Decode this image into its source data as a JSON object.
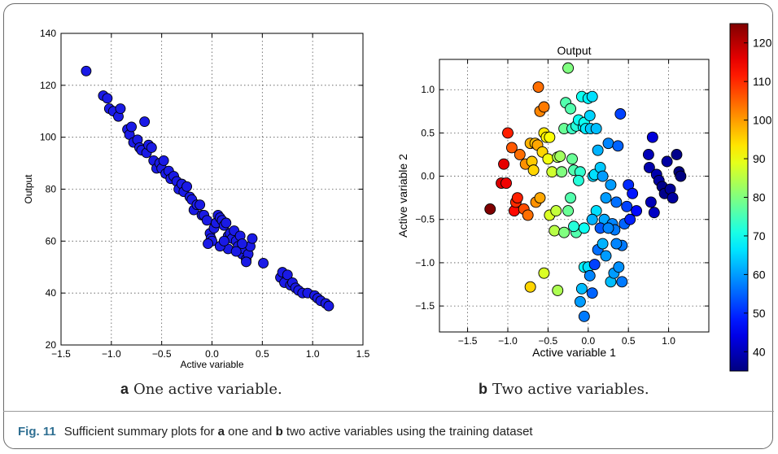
{
  "caption": {
    "fig_label": "Fig. 11",
    "text_1": "Sufficient summary plots for ",
    "bold_a": "a",
    "text_2": " one and ",
    "bold_b": "b",
    "text_3": " two active variables using the training dataset"
  },
  "subcaptions": {
    "a": {
      "letter": "a",
      "text": "One active variable."
    },
    "b": {
      "letter": "b",
      "text": "Two active variables."
    }
  },
  "chart_data": [
    {
      "type": "scatter",
      "panel": "a",
      "title": "",
      "xlabel": "Active variable",
      "ylabel": "Output",
      "xlim": [
        -1.5,
        1.5
      ],
      "ylim": [
        20,
        140
      ],
      "xticks": [
        "−1.5",
        "−1.0",
        "−0.5",
        "0.0",
        "0.5",
        "1.0",
        "1.5"
      ],
      "xtick_values": [
        -1.5,
        -1.0,
        -0.5,
        0.0,
        0.5,
        1.0,
        1.5
      ],
      "yticks": [
        "20",
        "40",
        "60",
        "80",
        "100",
        "120",
        "140"
      ],
      "ytick_values": [
        20,
        40,
        60,
        80,
        100,
        120,
        140
      ],
      "grid": true,
      "marker_color": "#1a1ae6",
      "points": [
        [
          -1.25,
          125.5
        ],
        [
          -1.08,
          116
        ],
        [
          -1.04,
          115
        ],
        [
          -1.02,
          111
        ],
        [
          -0.98,
          110
        ],
        [
          -0.93,
          108
        ],
        [
          -0.91,
          111
        ],
        [
          -0.84,
          103
        ],
        [
          -0.82,
          101
        ],
        [
          -0.8,
          104
        ],
        [
          -0.78,
          98
        ],
        [
          -0.74,
          99
        ],
        [
          -0.72,
          96
        ],
        [
          -0.7,
          95
        ],
        [
          -0.67,
          106
        ],
        [
          -0.65,
          94
        ],
        [
          -0.63,
          97
        ],
        [
          -0.6,
          96
        ],
        [
          -0.58,
          91
        ],
        [
          -0.55,
          88
        ],
        [
          -0.52,
          90
        ],
        [
          -0.5,
          88
        ],
        [
          -0.48,
          91
        ],
        [
          -0.46,
          86
        ],
        [
          -0.43,
          87
        ],
        [
          -0.41,
          84
        ],
        [
          -0.38,
          85
        ],
        [
          -0.35,
          83
        ],
        [
          -0.33,
          80
        ],
        [
          -0.3,
          82
        ],
        [
          -0.28,
          79
        ],
        [
          -0.25,
          81
        ],
        [
          -0.22,
          77
        ],
        [
          -0.2,
          76
        ],
        [
          -0.18,
          72
        ],
        [
          -0.15,
          74
        ],
        [
          -0.12,
          74
        ],
        [
          -0.1,
          70
        ],
        [
          -0.08,
          70
        ],
        [
          -0.05,
          68
        ],
        [
          -0.02,
          63
        ],
        [
          -0.01,
          61
        ],
        [
          0.0,
          60
        ],
        [
          0.02,
          65
        ],
        [
          0.04,
          67
        ],
        [
          0.06,
          70
        ],
        [
          0.08,
          69
        ],
        [
          0.1,
          68
        ],
        [
          0.12,
          66
        ],
        [
          0.14,
          67
        ],
        [
          0.16,
          62
        ],
        [
          0.18,
          63
        ],
        [
          0.2,
          61
        ],
        [
          0.22,
          64
        ],
        [
          0.24,
          60
        ],
        [
          0.26,
          58
        ],
        [
          0.28,
          62
        ],
        [
          0.3,
          55
        ],
        [
          0.32,
          57
        ],
        [
          0.34,
          53
        ],
        [
          0.36,
          55
        ],
        [
          0.38,
          58
        ],
        [
          0.4,
          61
        ],
        [
          0.16,
          57
        ],
        [
          0.24,
          56
        ],
        [
          0.3,
          59
        ],
        [
          0.34,
          52
        ],
        [
          0.08,
          58
        ],
        [
          0.12,
          60
        ],
        [
          -0.04,
          59
        ],
        [
          0.51,
          51.5
        ],
        [
          0.68,
          46
        ],
        [
          0.7,
          48
        ],
        [
          0.72,
          44
        ],
        [
          0.75,
          47
        ],
        [
          0.78,
          43
        ],
        [
          0.8,
          44
        ],
        [
          0.83,
          42
        ],
        [
          0.86,
          41
        ],
        [
          0.9,
          40
        ],
        [
          0.95,
          40
        ],
        [
          1.02,
          39
        ],
        [
          1.05,
          38
        ],
        [
          1.08,
          37
        ],
        [
          1.13,
          36
        ],
        [
          1.16,
          35
        ]
      ]
    },
    {
      "type": "scatter",
      "panel": "b",
      "title": "Output",
      "xlabel": "Active variable 1",
      "ylabel": "Active variable 2",
      "xlim": [
        -1.85,
        1.5
      ],
      "ylim": [
        -1.8,
        1.35
      ],
      "xticks": [
        "−1.5",
        "−1.0",
        "−0.5",
        "0.0",
        "0.5",
        "1.0"
      ],
      "xtick_values": [
        -1.5,
        -1.0,
        -0.5,
        0.0,
        0.5,
        1.0
      ],
      "yticks": [
        "−1.5",
        "−1.0",
        "−0.5",
        "0.0",
        "0.5",
        "1.0"
      ],
      "ytick_values": [
        -1.5,
        -1.0,
        -0.5,
        0.0,
        0.5,
        1.0
      ],
      "grid": true,
      "colormap": "jet",
      "colorbar": {
        "min": 35,
        "max": 125,
        "ticks": [
          "40",
          "50",
          "60",
          "70",
          "80",
          "90",
          "100",
          "110",
          "120"
        ],
        "tick_values": [
          40,
          50,
          60,
          70,
          80,
          90,
          100,
          110,
          120
        ]
      },
      "points": [
        [
          -1.22,
          -0.38,
          125
        ],
        [
          -1.08,
          -0.08,
          117
        ],
        [
          -1.02,
          -0.08,
          115
        ],
        [
          -1.05,
          0.14,
          116
        ],
        [
          -1.0,
          0.5,
          111
        ],
        [
          -0.95,
          0.33,
          106
        ],
        [
          -0.92,
          -0.4,
          113
        ],
        [
          -0.9,
          -0.3,
          110
        ],
        [
          -0.88,
          -0.25,
          111
        ],
        [
          -0.85,
          0.25,
          104
        ],
        [
          -0.8,
          -0.38,
          107
        ],
        [
          -0.78,
          0.14,
          101
        ],
        [
          -0.75,
          -0.45,
          104
        ],
        [
          -0.72,
          0.38,
          98
        ],
        [
          -0.7,
          0.17,
          96
        ],
        [
          -0.68,
          0.07,
          95
        ],
        [
          -0.66,
          0.38,
          97
        ],
        [
          -0.65,
          -0.3,
          101
        ],
        [
          -0.63,
          0.36,
          99
        ],
        [
          -0.6,
          0.75,
          102
        ],
        [
          -0.55,
          0.8,
          103
        ],
        [
          -0.62,
          1.03,
          104
        ],
        [
          -0.6,
          -0.25,
          99
        ],
        [
          -0.57,
          0.28,
          95
        ],
        [
          -0.55,
          0.5,
          93
        ],
        [
          -0.52,
          0.45,
          92
        ],
        [
          -0.5,
          0.2,
          90
        ],
        [
          -0.48,
          0.45,
          91
        ],
        [
          -0.48,
          -0.45,
          88
        ],
        [
          -0.45,
          0.05,
          87
        ],
        [
          -0.42,
          -0.63,
          85
        ],
        [
          -0.4,
          -0.4,
          86
        ],
        [
          -0.38,
          0.22,
          84
        ],
        [
          -0.35,
          0.23,
          83
        ],
        [
          -0.33,
          0.05,
          80
        ],
        [
          -0.3,
          0.55,
          78
        ],
        [
          -0.28,
          0.85,
          76
        ],
        [
          -0.25,
          1.25,
          80
        ],
        [
          -0.22,
          0.78,
          76
        ],
        [
          -0.2,
          0.2,
          78
        ],
        [
          -0.2,
          0.55,
          74
        ],
        [
          -0.18,
          0.07,
          76
        ],
        [
          -0.15,
          0.58,
          72
        ],
        [
          -0.12,
          0.65,
          70
        ],
        [
          -0.1,
          0.05,
          73
        ],
        [
          -0.08,
          0.92,
          70
        ],
        [
          -0.06,
          0.57,
          68
        ],
        [
          -0.05,
          0.62,
          70
        ],
        [
          -0.03,
          0.55,
          67
        ],
        [
          0.0,
          0.9,
          68
        ],
        [
          0.02,
          0.7,
          65
        ],
        [
          0.03,
          0.55,
          64
        ],
        [
          0.05,
          0.92,
          66
        ],
        [
          0.06,
          0.0,
          65
        ],
        [
          0.08,
          0.02,
          66
        ],
        [
          0.1,
          0.55,
          63
        ],
        [
          0.12,
          0.3,
          62
        ],
        [
          0.15,
          0.1,
          64
        ],
        [
          0.18,
          0.0,
          60
        ],
        [
          0.2,
          -0.5,
          61
        ],
        [
          0.22,
          -0.25,
          60
        ],
        [
          0.25,
          0.38,
          58
        ],
        [
          0.28,
          -0.1,
          60
        ],
        [
          0.3,
          -0.55,
          58
        ],
        [
          0.33,
          -0.62,
          57
        ],
        [
          0.35,
          -0.3,
          56
        ],
        [
          0.37,
          0.35,
          55
        ],
        [
          0.4,
          0.72,
          52
        ],
        [
          0.42,
          -0.8,
          57
        ],
        [
          0.45,
          -0.55,
          55
        ],
        [
          0.48,
          -0.35,
          52
        ],
        [
          0.5,
          -0.1,
          50
        ],
        [
          0.52,
          -0.5,
          49
        ],
        [
          0.55,
          -0.2,
          48
        ],
        [
          0.6,
          -0.4,
          47
        ],
        [
          0.75,
          0.25,
          40
        ],
        [
          0.76,
          0.1,
          39
        ],
        [
          0.78,
          -0.3,
          40
        ],
        [
          0.8,
          0.45,
          43
        ],
        [
          0.82,
          -0.42,
          41
        ],
        [
          0.85,
          0.02,
          39
        ],
        [
          0.88,
          -0.05,
          38
        ],
        [
          0.92,
          -0.12,
          36
        ],
        [
          0.95,
          -0.2,
          36
        ],
        [
          0.98,
          0.17,
          38
        ],
        [
          1.02,
          -0.15,
          37
        ],
        [
          1.05,
          -0.25,
          38
        ],
        [
          1.1,
          0.25,
          36
        ],
        [
          1.13,
          0.05,
          35
        ],
        [
          1.15,
          0.0,
          35
        ],
        [
          -0.72,
          -1.28,
          95
        ],
        [
          -0.55,
          -1.12,
          88
        ],
        [
          -0.38,
          -1.32,
          84
        ],
        [
          -0.3,
          -0.65,
          80
        ],
        [
          -0.15,
          -0.65,
          76
        ],
        [
          -0.25,
          -0.4,
          78
        ],
        [
          -0.22,
          -0.25,
          76
        ],
        [
          -0.18,
          -0.58,
          72
        ],
        [
          -0.12,
          -0.05,
          72
        ],
        [
          -0.05,
          -0.6,
          70
        ],
        [
          -0.05,
          -1.05,
          68
        ],
        [
          0.0,
          -1.05,
          66
        ],
        [
          -0.08,
          -1.3,
          63
        ],
        [
          -0.1,
          -1.45,
          60
        ],
        [
          -0.05,
          -1.62,
          57
        ],
        [
          0.02,
          -1.15,
          58
        ],
        [
          0.05,
          -1.35,
          55
        ],
        [
          0.08,
          -1.02,
          52
        ],
        [
          0.12,
          -0.85,
          56
        ],
        [
          0.15,
          -0.6,
          54
        ],
        [
          0.18,
          -0.78,
          62
        ],
        [
          0.22,
          -0.92,
          60
        ],
        [
          0.25,
          -0.6,
          58
        ],
        [
          0.28,
          -1.22,
          63
        ],
        [
          0.32,
          -1.12,
          60
        ],
        [
          0.35,
          -0.78,
          58
        ],
        [
          0.38,
          -1.05,
          59
        ],
        [
          0.42,
          -1.22,
          57
        ],
        [
          0.1,
          -0.4,
          66
        ],
        [
          0.05,
          -0.5,
          62
        ]
      ]
    }
  ]
}
